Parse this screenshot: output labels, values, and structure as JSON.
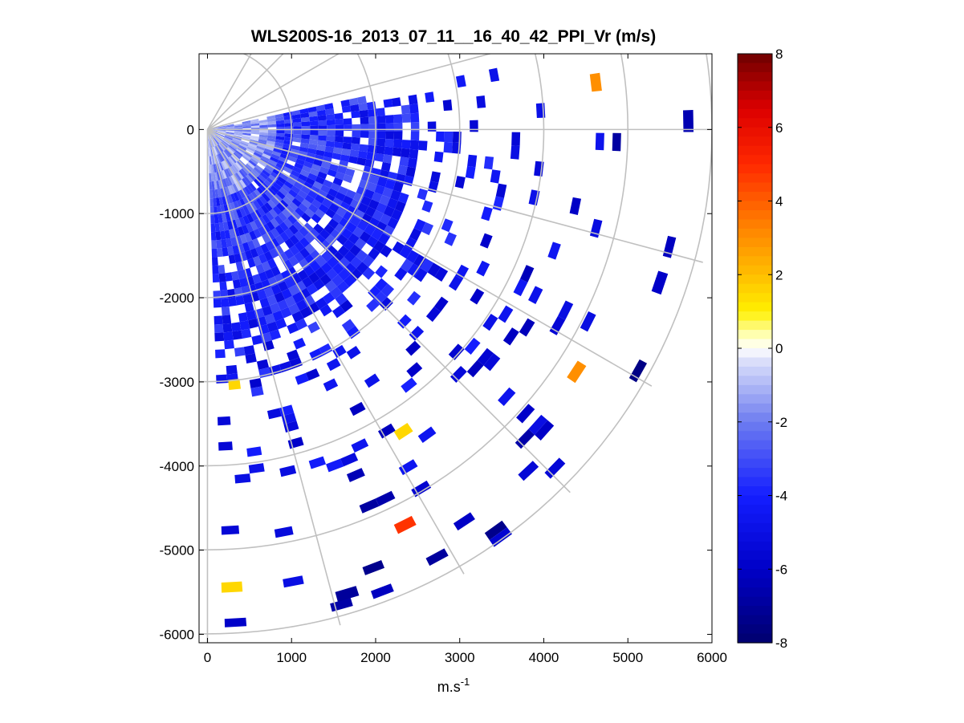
{
  "chart_data": {
    "type": "heatmap",
    "subtype": "polar-ppi-sector",
    "title": "WLS200S-16_2013_07_11__16_40_42_PPI_Vr (m/s)",
    "xlabel": "m.s",
    "xlabel_sup": "-1",
    "ylabel": "",
    "xlim": [
      -100,
      6000
    ],
    "ylim": [
      -6100,
      900
    ],
    "xticks": [
      0,
      1000,
      2000,
      3000,
      4000,
      5000,
      6000
    ],
    "xtick_labels": [
      "0",
      "1000",
      "2000",
      "3000",
      "4000",
      "5000",
      "6000"
    ],
    "yticks": [
      0,
      -1000,
      -2000,
      -3000,
      -4000,
      -5000,
      -6000
    ],
    "ytick_labels": [
      "0",
      "-1000",
      "-2000",
      "-3000",
      "-4000",
      "-5000",
      "-6000"
    ],
    "polar_grid": {
      "range_rings": [
        1000,
        2000,
        3000,
        4000,
        5000,
        6000
      ],
      "spokes_deg": [
        -90,
        -75,
        -60,
        -45,
        -30,
        -15,
        0,
        15,
        30,
        45,
        60
      ]
    },
    "scan": {
      "azimuth_deg_range": [
        -88,
        11
      ],
      "max_range": 6000,
      "value_units": "m/s",
      "dense_region_mean_value": -2.8,
      "notable_cells": [
        {
          "x": 320,
          "y": -3030,
          "value": 1.5
        },
        {
          "x": 2330,
          "y": -3590,
          "value": 1.5
        },
        {
          "x": 290,
          "y": -5440,
          "value": 1.5
        },
        {
          "x": 4390,
          "y": -2880,
          "value": 3.0
        },
        {
          "x": 4620,
          "y": 560,
          "value": 3.0
        },
        {
          "x": 2350,
          "y": -4700,
          "value": 4.8
        },
        {
          "x": 1660,
          "y": -5520,
          "value": -7.0
        },
        {
          "x": 5720,
          "y": 100,
          "value": -6.5
        },
        {
          "x": 5380,
          "y": -1820,
          "value": -6.0
        }
      ]
    },
    "colorbar": {
      "min": -8,
      "max": 8,
      "ticks": [
        8,
        6,
        4,
        2,
        0,
        -2,
        -4,
        -6,
        -8
      ],
      "tick_labels": [
        "8",
        "6",
        "4",
        "2",
        "0",
        "-2",
        "-4",
        "-6",
        "-8"
      ]
    }
  }
}
